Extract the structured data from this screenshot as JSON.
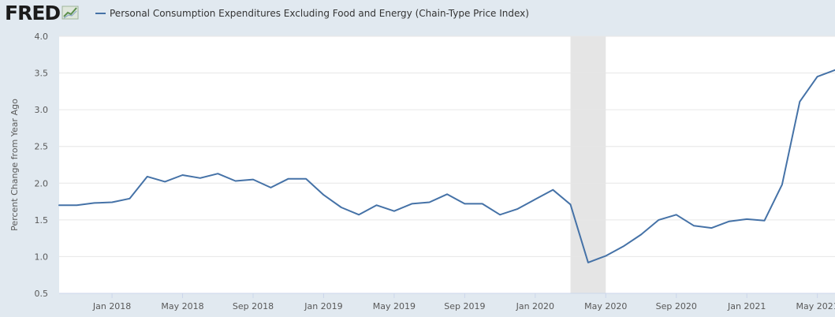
{
  "header": {
    "logo_text": "FRED",
    "logo_icon": "line-chart-icon",
    "legend_label": "Personal Consumption Expenditures Excluding Food and Energy (Chain-Type Price Index)"
  },
  "colors": {
    "series": "#4572a7",
    "background": "#e1e9f0",
    "plot_background": "#ffffff",
    "grid": "#e6e6e6",
    "recession_band": "#e5e5e5"
  },
  "chart_data": {
    "type": "line",
    "title": "",
    "xlabel": "",
    "ylabel": "Percent Change from Year Ago",
    "ylim": [
      0.5,
      4.0
    ],
    "xlim": [
      "2017-10",
      "2021-06"
    ],
    "y_ticks": [
      "0.5",
      "1.0",
      "1.5",
      "2.0",
      "2.5",
      "3.0",
      "3.5",
      "4.0"
    ],
    "x_ticks": [
      {
        "date": "2018-01",
        "label": "Jan 2018"
      },
      {
        "date": "2018-05",
        "label": "May 2018"
      },
      {
        "date": "2018-09",
        "label": "Sep 2018"
      },
      {
        "date": "2019-01",
        "label": "Jan 2019"
      },
      {
        "date": "2019-05",
        "label": "May 2019"
      },
      {
        "date": "2019-09",
        "label": "Sep 2019"
      },
      {
        "date": "2020-01",
        "label": "Jan 2020"
      },
      {
        "date": "2020-05",
        "label": "May 2020"
      },
      {
        "date": "2020-09",
        "label": "Sep 2020"
      },
      {
        "date": "2021-01",
        "label": "Jan 2021"
      },
      {
        "date": "2021-05",
        "label": "May 2021"
      }
    ],
    "recession": {
      "start": "2020-03",
      "end": "2020-05"
    },
    "grid": true,
    "legend": "top-left",
    "series": [
      {
        "name": "Personal Consumption Expenditures Excluding Food and Energy (Chain-Type Price Index)",
        "color": "#4572a7",
        "x": [
          "2017-10",
          "2017-11",
          "2017-12",
          "2018-01",
          "2018-02",
          "2018-03",
          "2018-04",
          "2018-05",
          "2018-06",
          "2018-07",
          "2018-08",
          "2018-09",
          "2018-10",
          "2018-11",
          "2018-12",
          "2019-01",
          "2019-02",
          "2019-03",
          "2019-04",
          "2019-05",
          "2019-06",
          "2019-07",
          "2019-08",
          "2019-09",
          "2019-10",
          "2019-11",
          "2019-12",
          "2020-01",
          "2020-02",
          "2020-03",
          "2020-04",
          "2020-05",
          "2020-06",
          "2020-07",
          "2020-08",
          "2020-09",
          "2020-10",
          "2020-11",
          "2020-12",
          "2021-01",
          "2021-02",
          "2021-03",
          "2021-04",
          "2021-05",
          "2021-06"
        ],
        "values": [
          1.7,
          1.7,
          1.73,
          1.74,
          1.79,
          2.09,
          2.02,
          2.11,
          2.07,
          2.13,
          2.03,
          2.05,
          1.94,
          2.06,
          2.06,
          1.84,
          1.67,
          1.57,
          1.7,
          1.62,
          1.72,
          1.74,
          1.85,
          1.72,
          1.72,
          1.57,
          1.65,
          1.78,
          1.91,
          1.71,
          0.92,
          1.01,
          1.14,
          1.3,
          1.5,
          1.57,
          1.42,
          1.39,
          1.48,
          1.51,
          1.49,
          1.98,
          3.11,
          3.45,
          3.54
        ]
      }
    ]
  }
}
